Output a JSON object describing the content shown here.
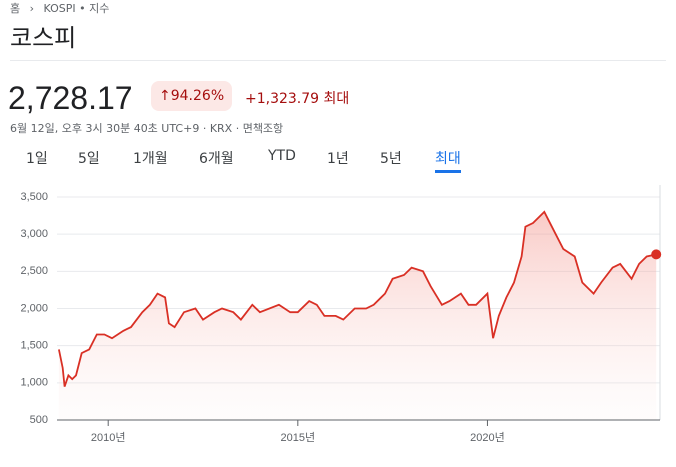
{
  "page": {
    "breadcrumb": [
      "홈",
      "KOSPI • 지수"
    ],
    "title": "코스피",
    "price": "2,728.17",
    "change_percent": "94.26%",
    "change_abs": "+1,323.79",
    "change_period": "최대",
    "info": "6월 12일, 오후 3시 30분 40초 UTC+9 · KRX · 면책조항",
    "tabs": [
      "1일",
      "5일",
      "1개월",
      "6개월",
      "YTD",
      "1년",
      "5년",
      "최대"
    ],
    "selected_tab": 7
  },
  "chart_data": {
    "type": "line",
    "x": [
      2008.7,
      2008.8,
      2008.85,
      2008.95,
      2009.05,
      2009.15,
      2009.3,
      2009.5,
      2009.7,
      2009.9,
      2010.1,
      2010.4,
      2010.6,
      2010.9,
      2011.1,
      2011.3,
      2011.5,
      2011.6,
      2011.75,
      2012.0,
      2012.3,
      2012.5,
      2012.8,
      2013.0,
      2013.3,
      2013.5,
      2013.8,
      2014.0,
      2014.5,
      2014.8,
      2015.0,
      2015.3,
      2015.5,
      2015.7,
      2016.0,
      2016.2,
      2016.5,
      2016.8,
      2017.0,
      2017.3,
      2017.5,
      2017.8,
      2018.0,
      2018.3,
      2018.5,
      2018.8,
      2019.0,
      2019.3,
      2019.5,
      2019.7,
      2020.0,
      2020.15,
      2020.3,
      2020.5,
      2020.7,
      2020.9,
      2021.0,
      2021.2,
      2021.5,
      2021.6,
      2021.8,
      2022.0,
      2022.3,
      2022.5,
      2022.8,
      2023.0,
      2023.3,
      2023.5,
      2023.8,
      2024.0,
      2024.2,
      2024.45
    ],
    "series": [
      {
        "color": "#d93025",
        "values": [
          1450,
          1200,
          950,
          1100,
          1050,
          1100,
          1400,
          1450,
          1650,
          1650,
          1600,
          1700,
          1750,
          1950,
          2050,
          2200,
          2150,
          1800,
          1750,
          1950,
          2000,
          1850,
          1950,
          2000,
          1950,
          1850,
          2050,
          1950,
          2050,
          1950,
          1950,
          2100,
          2050,
          1900,
          1900,
          1850,
          2000,
          2000,
          2050,
          2200,
          2400,
          2450,
          2550,
          2500,
          2300,
          2050,
          2100,
          2200,
          2050,
          2050,
          2200,
          1600,
          1900,
          2150,
          2350,
          2700,
          3100,
          3150,
          3300,
          3200,
          3000,
          2800,
          2700,
          2350,
          2200,
          2350,
          2550,
          2600,
          2400,
          2600,
          2700,
          2728.17
        ]
      }
    ],
    "xlim": [
      2008.65,
      2024.55
    ],
    "xticks": [
      {
        "value": 2010,
        "label": "2010년"
      },
      {
        "value": 2015,
        "label": "2015년"
      },
      {
        "value": 2020,
        "label": "2020년"
      }
    ],
    "ylim": [
      500,
      3500
    ],
    "yticks": [
      500,
      {
        "value": 1000,
        "label": "1,000"
      },
      {
        "value": 1500,
        "label": "1,500"
      },
      {
        "value": 2000,
        "label": "2,000"
      },
      {
        "value": 2500,
        "label": "2,500"
      },
      {
        "value": 3000,
        "label": "3,000"
      },
      {
        "value": 3500,
        "label": "3,500"
      }
    ],
    "grid": true
  }
}
